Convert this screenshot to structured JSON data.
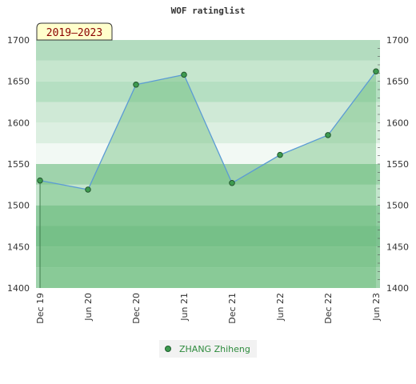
{
  "chart_data": {
    "type": "area",
    "title": "WOF ratinglist",
    "period_badge": "2019–2023",
    "categories": [
      "Dec 19",
      "Jun 20",
      "Dec 20",
      "Jun 21",
      "Dec 21",
      "Jun 22",
      "Dec 22",
      "Jun 23"
    ],
    "series": [
      {
        "name": "ZHANG Zhiheng",
        "values": [
          1530,
          1519,
          1646,
          1658,
          1527,
          1561,
          1585,
          1662
        ]
      }
    ],
    "ylim": [
      1400,
      1700
    ],
    "yticks": [
      1400,
      1450,
      1500,
      1550,
      1600,
      1650,
      1700
    ],
    "y_axis_left": true,
    "y_axis_right": true,
    "grid": "horizontal bands",
    "legend_placement": "bottom-center",
    "colors": {
      "line": "#5b9bd5",
      "marker_fill": "#3d9a4f",
      "area_fill": "#6fbf7f",
      "legend_text": "#2e8b3d",
      "badge_bg": "#ffffcc",
      "badge_text": "#8b0000"
    }
  }
}
